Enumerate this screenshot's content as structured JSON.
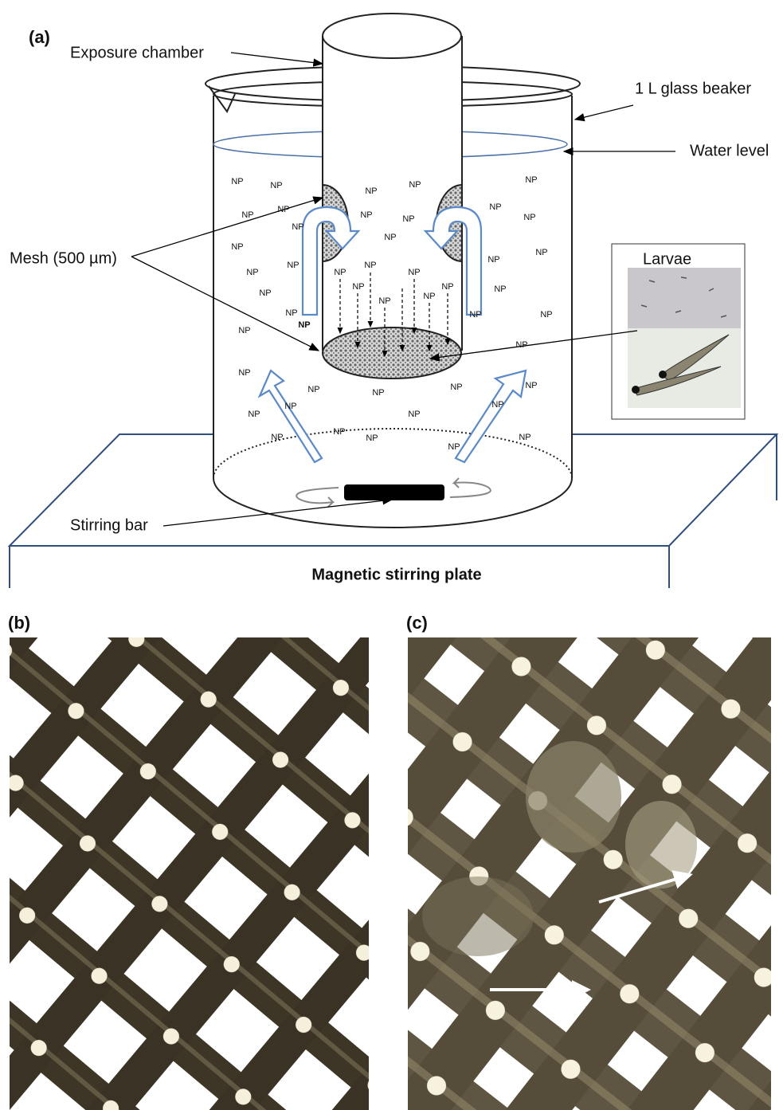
{
  "panels": {
    "a": "(a)",
    "b": "(b)",
    "c": "(c)"
  },
  "labels": {
    "exposure_chamber": "Exposure chamber",
    "beaker": "1 L glass beaker",
    "water_level": "Water level",
    "mesh": "Mesh (500 µm)",
    "larvae": "Larvae",
    "stirring_bar": "Stirring bar",
    "plate": "Magnetic stirring plate"
  },
  "np_labels": [
    "NP",
    "NP",
    "NP",
    "NP",
    "NP",
    "NP",
    "NP",
    "NP",
    "NP",
    "NP",
    "NP",
    "NP",
    "NP",
    "NP",
    "NP",
    "NP",
    "NP",
    "NP",
    "NP",
    "NP",
    "NP",
    "NP",
    "NP",
    "NP",
    "NP",
    "NP",
    "NP",
    "NP",
    "NP",
    "NP",
    "NP",
    "NP",
    "NP",
    "NP",
    "NP",
    "NP",
    "NP",
    "NP",
    "NP",
    "NP",
    "NP",
    "NP",
    "NP",
    "NP",
    "NP",
    "NP",
    "NP"
  ]
}
